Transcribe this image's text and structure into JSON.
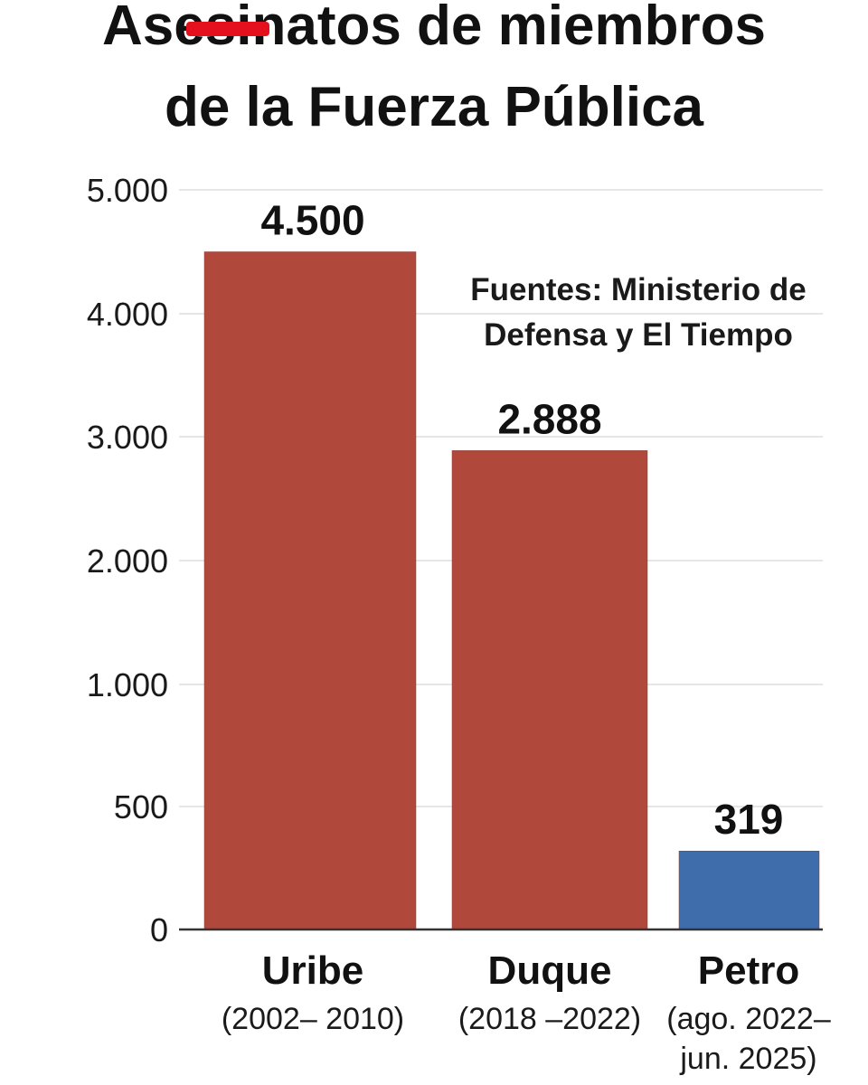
{
  "title": {
    "line1": "Asesinatos de miembros",
    "line2": "de la Fuerza Pública"
  },
  "source_note": "Fuentes: Ministerio de Defensa y El Tiempo",
  "colors": {
    "background": "#ffffff",
    "bar_red": "#b0493c",
    "bar_blue": "#3f6dab",
    "redaction": "#e4101d",
    "grid": "#dedede",
    "axis": "#333333",
    "text": "#111111"
  },
  "chart_data": {
    "type": "bar",
    "title": "Asesinatos de miembros de la Fuerza Pública",
    "xlabel": "",
    "ylabel": "",
    "grid": true,
    "y_axis_scale": "non-linear (ticks 0, 500, 1.000, 2.000, 3.000, 4.000, 5.000)",
    "y_ticks": [
      {
        "value": 0,
        "label": "0"
      },
      {
        "value": 500,
        "label": "500"
      },
      {
        "value": 1000,
        "label": "1.000"
      },
      {
        "value": 2000,
        "label": "2.000"
      },
      {
        "value": 3000,
        "label": "3.000"
      },
      {
        "value": 4000,
        "label": "4.000"
      },
      {
        "value": 5000,
        "label": "5.000"
      }
    ],
    "ylim": [
      0,
      5000
    ],
    "categories": [
      {
        "name": "Uribe",
        "period": [
          "(2002– 2010)"
        ]
      },
      {
        "name": "Duque",
        "period": [
          "(2018 –2022)"
        ]
      },
      {
        "name": "Petro",
        "period": [
          "(ago. 2022–",
          "jun. 2025)"
        ]
      }
    ],
    "values": [
      4500,
      2888,
      319
    ],
    "value_labels": [
      "4.500",
      "2.888",
      "319"
    ],
    "bar_colors": [
      "#b0493c",
      "#b0493c",
      "#3f6dab"
    ],
    "annotation": "Fuentes: Ministerio de Defensa y El Tiempo"
  }
}
